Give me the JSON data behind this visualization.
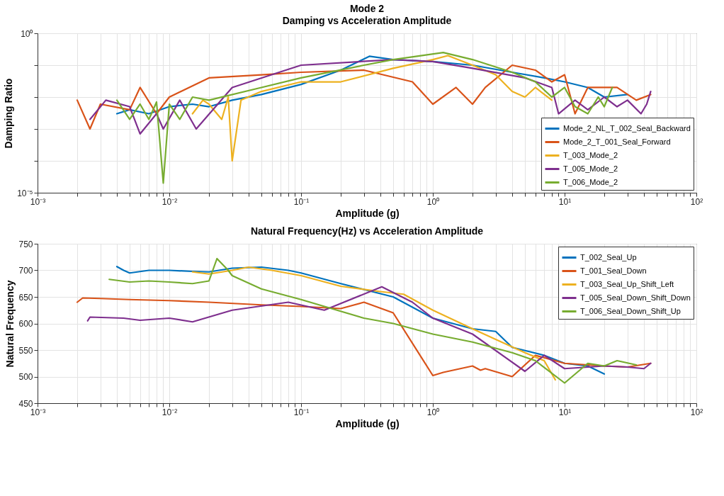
{
  "chart_data": [
    {
      "type": "line",
      "title": "Mode 2",
      "subtitle": "Damping vs Acceleration Amplitude",
      "xlabel": "Amplitude (g)",
      "ylabel": "Damping Ratio",
      "log": "xy",
      "grid": true,
      "legend": "bottom right",
      "xlim": [
        0.001,
        100
      ],
      "xticks": [
        {
          "value": 0.001,
          "label": "10⁻³"
        },
        {
          "value": 0.002,
          "label": null
        },
        {
          "value": 0.003,
          "label": null
        },
        {
          "value": 0.004,
          "label": null
        },
        {
          "value": 0.005,
          "label": null
        },
        {
          "value": 0.006,
          "label": null
        },
        {
          "value": 0.007,
          "label": null
        },
        {
          "value": 0.008,
          "label": null
        },
        {
          "value": 0.009,
          "label": null
        },
        {
          "value": 0.01,
          "label": "10⁻²"
        },
        {
          "value": 0.02,
          "label": null
        },
        {
          "value": 0.03,
          "label": null
        },
        {
          "value": 0.04,
          "label": null
        },
        {
          "value": 0.05,
          "label": null
        },
        {
          "value": 0.06,
          "label": null
        },
        {
          "value": 0.07,
          "label": null
        },
        {
          "value": 0.08,
          "label": null
        },
        {
          "value": 0.09,
          "label": null
        },
        {
          "value": 0.1,
          "label": "10⁻¹"
        },
        {
          "value": 0.2,
          "label": null
        },
        {
          "value": 0.3,
          "label": null
        },
        {
          "value": 0.4,
          "label": null
        },
        {
          "value": 0.5,
          "label": null
        },
        {
          "value": 0.6,
          "label": null
        },
        {
          "value": 0.7,
          "label": null
        },
        {
          "value": 0.8,
          "label": null
        },
        {
          "value": 0.9,
          "label": null
        },
        {
          "value": 1,
          "label": "10⁰"
        },
        {
          "value": 2,
          "label": null
        },
        {
          "value": 3,
          "label": null
        },
        {
          "value": 4,
          "label": null
        },
        {
          "value": 5,
          "label": null
        },
        {
          "value": 6,
          "label": null
        },
        {
          "value": 7,
          "label": null
        },
        {
          "value": 8,
          "label": null
        },
        {
          "value": 9,
          "label": null
        },
        {
          "value": 10,
          "label": "10¹"
        },
        {
          "value": 20,
          "label": null
        },
        {
          "value": 30,
          "label": null
        },
        {
          "value": 40,
          "label": null
        },
        {
          "value": 50,
          "label": null
        },
        {
          "value": 60,
          "label": null
        },
        {
          "value": 70,
          "label": null
        },
        {
          "value": 80,
          "label": null
        },
        {
          "value": 90,
          "label": null
        },
        {
          "value": 100,
          "label": "10²"
        }
      ],
      "ylim": [
        1e-05,
        1
      ],
      "yticks": [
        {
          "value": 1e-05,
          "label": "10⁻⁵"
        },
        {
          "value": 0.0001,
          "label": null
        },
        {
          "value": 0.001,
          "label": null
        },
        {
          "value": 0.01,
          "label": null
        },
        {
          "value": 0.1,
          "label": null
        },
        {
          "value": 1,
          "label": "10⁰"
        }
      ],
      "series": [
        {
          "name": "Mode_2_NL_T_002_Seal_Backward",
          "color": "#0072bd",
          "x": [
            0.004,
            0.005,
            0.007,
            0.01,
            0.015,
            0.02,
            0.03,
            0.05,
            0.1,
            0.2,
            0.33,
            0.5,
            1,
            2,
            4,
            7,
            10,
            15,
            20,
            30
          ],
          "values": [
            0.003,
            0.004,
            0.003,
            0.005,
            0.006,
            0.005,
            0.008,
            0.012,
            0.025,
            0.07,
            0.19,
            0.15,
            0.13,
            0.1,
            0.06,
            0.04,
            0.03,
            0.02,
            0.01,
            0.012
          ]
        },
        {
          "name": "Mode_2_T_001_Seal_Forward",
          "color": "#d95319",
          "x": [
            0.002,
            0.0025,
            0.003,
            0.005,
            0.006,
            0.008,
            0.01,
            0.02,
            0.05,
            0.1,
            0.3,
            0.7,
            1,
            1.5,
            2,
            2.5,
            4,
            6,
            8,
            10,
            12,
            15,
            25,
            35,
            45
          ],
          "values": [
            0.008,
            0.001,
            0.006,
            0.004,
            0.02,
            0.003,
            0.01,
            0.04,
            0.05,
            0.06,
            0.07,
            0.03,
            0.006,
            0.02,
            0.006,
            0.02,
            0.1,
            0.07,
            0.03,
            0.05,
            0.003,
            0.02,
            0.02,
            0.008,
            0.012
          ]
        },
        {
          "name": "T_003_Mode_2",
          "color": "#edb120",
          "x": [
            0.015,
            0.018,
            0.02,
            0.025,
            0.028,
            0.03,
            0.035,
            0.05,
            0.1,
            0.2,
            0.5,
            1,
            1.3,
            2,
            3,
            4,
            5,
            6,
            8
          ],
          "values": [
            0.003,
            0.008,
            0.006,
            0.002,
            0.01,
            0.0001,
            0.008,
            0.015,
            0.03,
            0.03,
            0.08,
            0.15,
            0.2,
            0.1,
            0.05,
            0.015,
            0.01,
            0.02,
            0.008
          ]
        },
        {
          "name": "T_005_Mode_2",
          "color": "#7e2f8e",
          "x": [
            0.0025,
            0.0033,
            0.005,
            0.006,
            0.008,
            0.009,
            0.012,
            0.016,
            0.03,
            0.1,
            0.5,
            1,
            2,
            5,
            8,
            9,
            12,
            15,
            20,
            25,
            30,
            38,
            42,
            45
          ],
          "values": [
            0.002,
            0.008,
            0.005,
            0.0007,
            0.003,
            0.001,
            0.008,
            0.001,
            0.02,
            0.1,
            0.15,
            0.13,
            0.08,
            0.04,
            0.02,
            0.003,
            0.008,
            0.004,
            0.01,
            0.005,
            0.008,
            0.003,
            0.006,
            0.015
          ]
        },
        {
          "name": "T_006_Mode_2",
          "color": "#77ac30",
          "x": [
            0.004,
            0.005,
            0.006,
            0.007,
            0.008,
            0.009,
            0.01,
            0.012,
            0.015,
            0.02,
            0.05,
            0.1,
            0.3,
            0.5,
            1.2,
            2,
            4,
            6,
            8,
            10,
            12,
            15,
            18,
            20,
            23
          ],
          "values": [
            0.008,
            0.002,
            0.006,
            0.002,
            0.007,
            2e-05,
            0.006,
            0.002,
            0.01,
            0.008,
            0.02,
            0.04,
            0.1,
            0.15,
            0.25,
            0.15,
            0.06,
            0.03,
            0.01,
            0.02,
            0.005,
            0.003,
            0.01,
            0.005,
            0.02
          ]
        }
      ]
    },
    {
      "type": "line",
      "title": "Natural Frequency(Hz) vs Acceleration Amplitude",
      "xlabel": "Amplitude (g)",
      "ylabel": "Natural Frequency",
      "log": "x",
      "grid": true,
      "legend": "top right",
      "xlim": [
        0.001,
        100
      ],
      "xticks": [
        {
          "value": 0.001,
          "label": "10⁻³"
        },
        {
          "value": 0.002,
          "label": null
        },
        {
          "value": 0.003,
          "label": null
        },
        {
          "value": 0.004,
          "label": null
        },
        {
          "value": 0.005,
          "label": null
        },
        {
          "value": 0.006,
          "label": null
        },
        {
          "value": 0.007,
          "label": null
        },
        {
          "value": 0.008,
          "label": null
        },
        {
          "value": 0.009,
          "label": null
        },
        {
          "value": 0.01,
          "label": "10⁻²"
        },
        {
          "value": 0.02,
          "label": null
        },
        {
          "value": 0.03,
          "label": null
        },
        {
          "value": 0.04,
          "label": null
        },
        {
          "value": 0.05,
          "label": null
        },
        {
          "value": 0.06,
          "label": null
        },
        {
          "value": 0.07,
          "label": null
        },
        {
          "value": 0.08,
          "label": null
        },
        {
          "value": 0.09,
          "label": null
        },
        {
          "value": 0.1,
          "label": "10⁻¹"
        },
        {
          "value": 0.2,
          "label": null
        },
        {
          "value": 0.3,
          "label": null
        },
        {
          "value": 0.4,
          "label": null
        },
        {
          "value": 0.5,
          "label": null
        },
        {
          "value": 0.6,
          "label": null
        },
        {
          "value": 0.7,
          "label": null
        },
        {
          "value": 0.8,
          "label": null
        },
        {
          "value": 0.9,
          "label": null
        },
        {
          "value": 1,
          "label": "10⁰"
        },
        {
          "value": 2,
          "label": null
        },
        {
          "value": 3,
          "label": null
        },
        {
          "value": 4,
          "label": null
        },
        {
          "value": 5,
          "label": null
        },
        {
          "value": 6,
          "label": null
        },
        {
          "value": 7,
          "label": null
        },
        {
          "value": 8,
          "label": null
        },
        {
          "value": 9,
          "label": null
        },
        {
          "value": 10,
          "label": "10¹"
        },
        {
          "value": 20,
          "label": null
        },
        {
          "value": 30,
          "label": null
        },
        {
          "value": 40,
          "label": null
        },
        {
          "value": 50,
          "label": null
        },
        {
          "value": 60,
          "label": null
        },
        {
          "value": 70,
          "label": null
        },
        {
          "value": 80,
          "label": null
        },
        {
          "value": 90,
          "label": null
        },
        {
          "value": 100,
          "label": "10²"
        }
      ],
      "ylim": [
        450,
        750
      ],
      "yticks": [
        450,
        500,
        550,
        600,
        650,
        700,
        750
      ],
      "series": [
        {
          "name": "T_002_Seal_Up",
          "color": "#0072bd",
          "x": [
            0.004,
            0.0045,
            0.005,
            0.007,
            0.01,
            0.015,
            0.02,
            0.03,
            0.05,
            0.08,
            0.1,
            0.2,
            0.5,
            1,
            2,
            3,
            4,
            7,
            10,
            15,
            20
          ],
          "values": [
            707,
            700,
            695,
            700,
            700,
            698,
            697,
            704,
            706,
            700,
            695,
            675,
            650,
            610,
            590,
            585,
            555,
            540,
            525,
            520,
            505
          ]
        },
        {
          "name": "T_001_Seal_Down",
          "color": "#d95319",
          "x": [
            0.002,
            0.0022,
            0.003,
            0.005,
            0.01,
            0.02,
            0.05,
            0.1,
            0.2,
            0.3,
            0.5,
            1,
            1.2,
            2,
            2.3,
            2.5,
            4,
            6,
            10,
            20,
            30,
            45
          ],
          "values": [
            640,
            648,
            647,
            645,
            643,
            640,
            635,
            632,
            628,
            640,
            620,
            502,
            508,
            520,
            512,
            515,
            500,
            540,
            525,
            520,
            518,
            525
          ]
        },
        {
          "name": "T_003_Seal_Up_Shift_Left",
          "color": "#edb120",
          "x": [
            0.015,
            0.02,
            0.03,
            0.04,
            0.06,
            0.1,
            0.2,
            0.4,
            0.6,
            1,
            2,
            3,
            5,
            7,
            8.5
          ],
          "values": [
            697,
            693,
            700,
            706,
            700,
            690,
            670,
            660,
            655,
            625,
            590,
            570,
            545,
            530,
            494
          ]
        },
        {
          "name": "T_005_Seal_Down_Shift_Down",
          "color": "#7e2f8e",
          "x": [
            0.0024,
            0.0025,
            0.0045,
            0.006,
            0.01,
            0.015,
            0.03,
            0.08,
            0.15,
            0.41,
            0.7,
            1,
            2,
            5,
            7,
            10,
            20,
            30,
            40,
            45
          ],
          "values": [
            605,
            612,
            610,
            606,
            610,
            603,
            625,
            640,
            625,
            669,
            640,
            610,
            580,
            510,
            540,
            515,
            520,
            518,
            515,
            525
          ]
        },
        {
          "name": "T_006_Seal_Down_Shift_Up",
          "color": "#77ac30",
          "x": [
            0.0035,
            0.005,
            0.007,
            0.01,
            0.015,
            0.02,
            0.023,
            0.028,
            0.03,
            0.05,
            0.1,
            0.3,
            0.5,
            1,
            2,
            4,
            6,
            10,
            15,
            20,
            25,
            35
          ],
          "values": [
            683,
            678,
            680,
            678,
            675,
            680,
            722,
            700,
            690,
            665,
            645,
            610,
            600,
            580,
            565,
            545,
            530,
            488,
            525,
            520,
            530,
            522
          ]
        }
      ]
    }
  ]
}
